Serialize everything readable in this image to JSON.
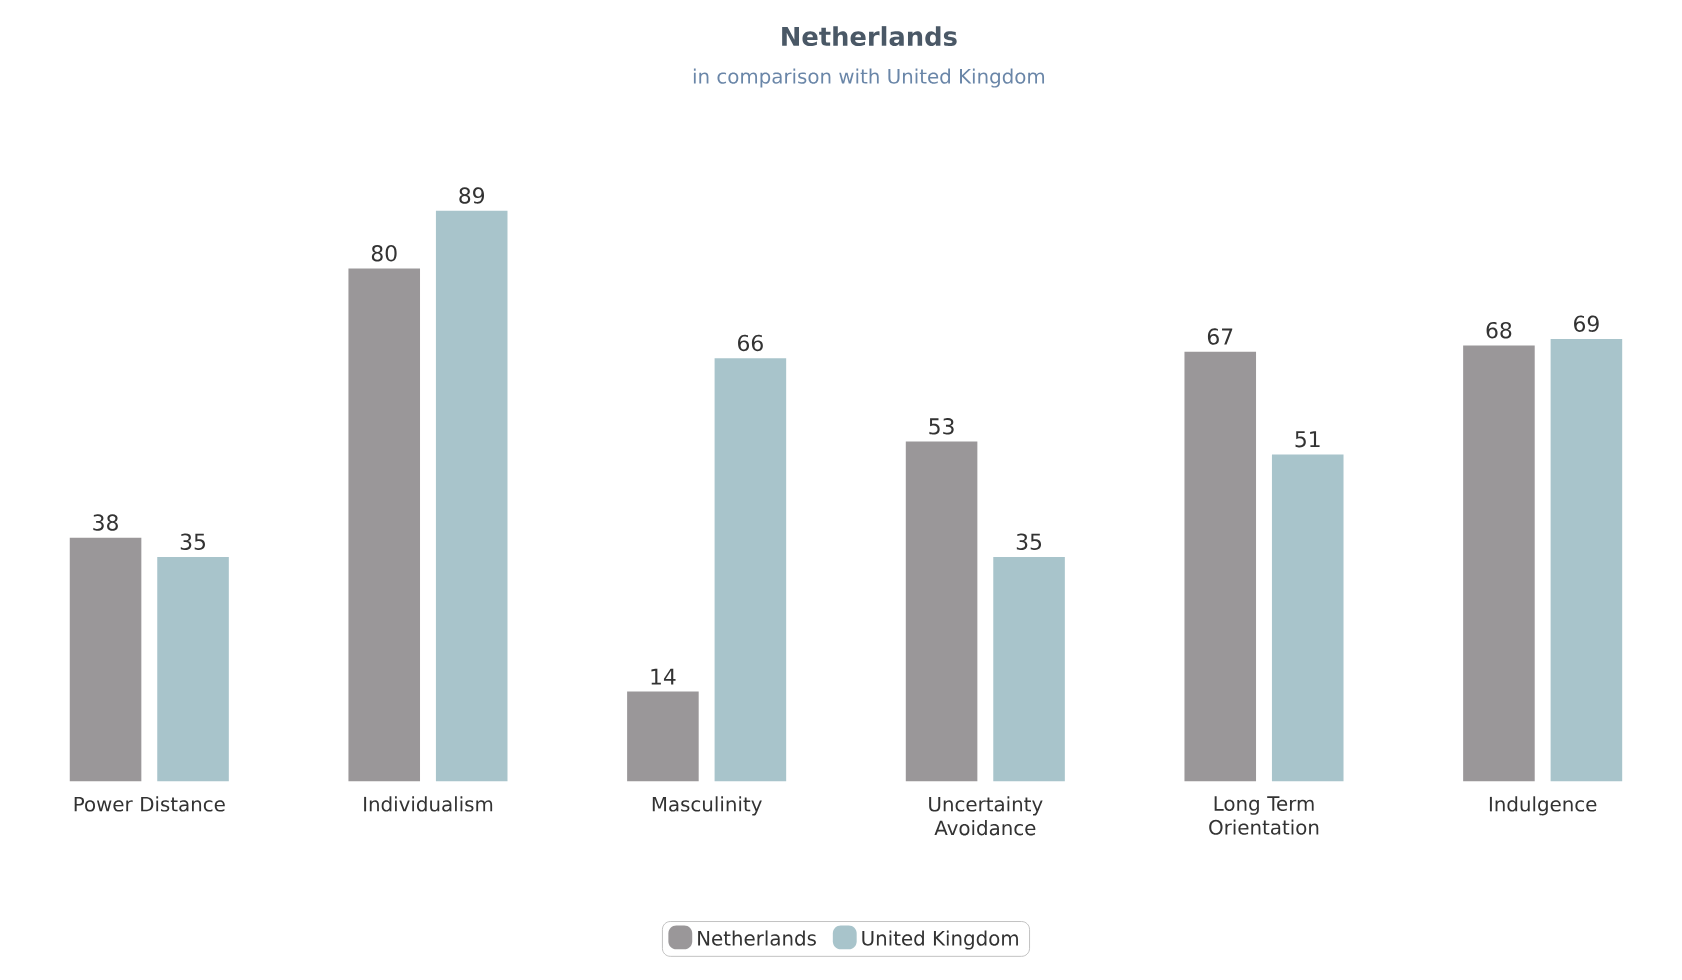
{
  "chart_data": {
    "type": "bar",
    "title": "Netherlands",
    "subtitle": "in comparison with United Kingdom",
    "categories": [
      "Power Distance",
      "Individualism",
      "Masculinity",
      "Uncertainty Avoidance",
      "Long Term Orientation",
      "Indulgence"
    ],
    "series": [
      {
        "name": "Netherlands",
        "color": "#9a9799",
        "values": [
          38,
          80,
          14,
          53,
          67,
          68
        ]
      },
      {
        "name": "United Kingdom",
        "color": "#a8c4cb",
        "values": [
          35,
          89,
          66,
          35,
          51,
          69
        ]
      }
    ],
    "data_labels": true,
    "legend": "bottom"
  }
}
